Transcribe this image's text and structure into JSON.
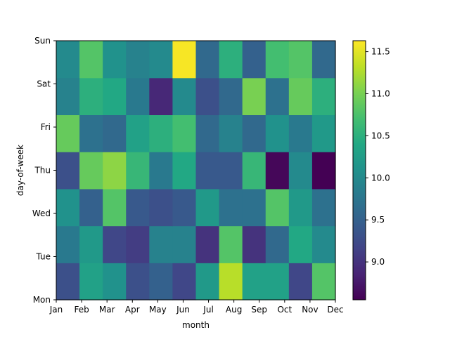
{
  "chart_data": {
    "type": "heatmap",
    "title": "",
    "xlabel": "month",
    "ylabel": "day-of-week",
    "x_categories": [
      "Jan",
      "Feb",
      "Mar",
      "Apr",
      "May",
      "Jun",
      "Jul",
      "Aug",
      "Sep",
      "Oct",
      "Nov",
      "Dec"
    ],
    "x_tick_labels": [
      "Jan",
      "Feb",
      "Mar",
      "Apr",
      "May",
      "Jun",
      "Jul",
      "Aug",
      "Sep",
      "Oct",
      "Nov",
      "Dec"
    ],
    "y_categories": [
      "Mon",
      "Tue",
      "Wed",
      "Thu",
      "Fri",
      "Sat",
      "Sun"
    ],
    "y_tick_labels": [
      "Mon",
      "Tue",
      "Wed",
      "Thu",
      "Fri",
      "Sat",
      "Sun"
    ],
    "values": [
      [
        9.3,
        10.3,
        10.1,
        9.3,
        9.5,
        9.2,
        10.2,
        11.3,
        10.3,
        10.3,
        9.2,
        10.8
      ],
      [
        9.8,
        10.2,
        9.2,
        9.1,
        9.9,
        9.9,
        9.0,
        10.8,
        9.0,
        9.6,
        10.4,
        10.0
      ],
      [
        10.1,
        9.5,
        10.8,
        9.4,
        9.3,
        9.4,
        10.2,
        9.7,
        9.7,
        10.8,
        10.2,
        9.7
      ],
      [
        9.3,
        10.9,
        11.1,
        10.6,
        9.8,
        10.4,
        9.4,
        9.4,
        10.6,
        8.6,
        10.0,
        8.55
      ],
      [
        10.9,
        9.7,
        9.6,
        10.3,
        10.5,
        10.7,
        9.6,
        9.9,
        9.6,
        10.1,
        9.8,
        10.2
      ],
      [
        9.9,
        10.5,
        10.4,
        9.8,
        8.9,
        10.0,
        9.3,
        9.6,
        11.0,
        9.7,
        10.9,
        10.5
      ],
      [
        10.0,
        10.8,
        10.1,
        9.9,
        10.0,
        11.6,
        9.6,
        10.5,
        9.5,
        10.7,
        10.8,
        9.6
      ]
    ],
    "colormap": "viridis",
    "colorbar": {
      "range": [
        8.55,
        11.63
      ],
      "ticks": [
        9.0,
        9.5,
        10.0,
        10.5,
        11.0,
        11.5
      ],
      "tick_labels": [
        "9.0",
        "9.5",
        "10.0",
        "10.5",
        "11.0",
        "11.5"
      ]
    },
    "grid": false,
    "legend": "colorbar on right"
  }
}
